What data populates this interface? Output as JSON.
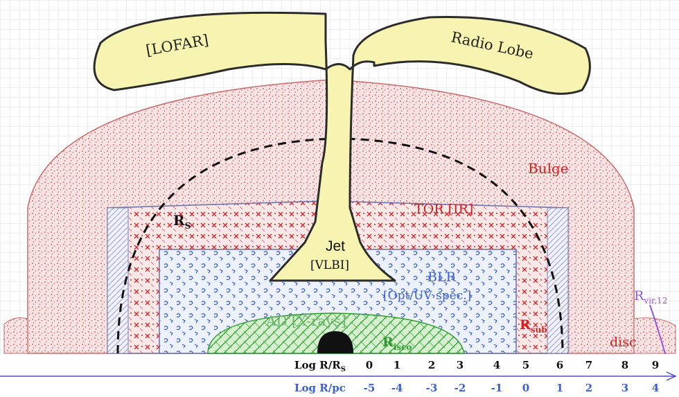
{
  "labels": {
    "lofar": "[LOFAR]",
    "radio_lobe": "Radio Lobe",
    "bulge": "Bulge",
    "tor": "TOR [IR]",
    "rs_main": "R",
    "rs_sub": "S",
    "jet": "Jet",
    "vlbi": "[VLBI]",
    "blr": "BLR",
    "blr_method": "[Opt/UV spec.]",
    "ad": "AD [X-rays]",
    "risco_main": "R",
    "risco_sub": "isco",
    "rsub_main": "R",
    "rsub_sub": "sub",
    "rvir_main": "R",
    "rvir_sub": "vir,12",
    "disc": "disc"
  },
  "scale": {
    "rs_label": "Log R/R",
    "rs_label_sub": "S",
    "rs_ticks": [
      "0",
      "1",
      "2",
      "3",
      "4",
      "5",
      "6",
      "7",
      "8",
      "9"
    ],
    "pc_label": "Log R/pc",
    "pc_ticks": [
      "-5",
      "-4",
      "-3",
      "-2",
      "-1",
      "0",
      "1",
      "2",
      "3",
      "4"
    ]
  },
  "colors": {
    "grid": "#cfd6dc",
    "red": "#d42020",
    "blue": "#3a60d8",
    "green": "#2f9a2f",
    "yellow": "#f7f3b0",
    "purple": "#9a55d6",
    "axis": "#4b4bd0"
  }
}
